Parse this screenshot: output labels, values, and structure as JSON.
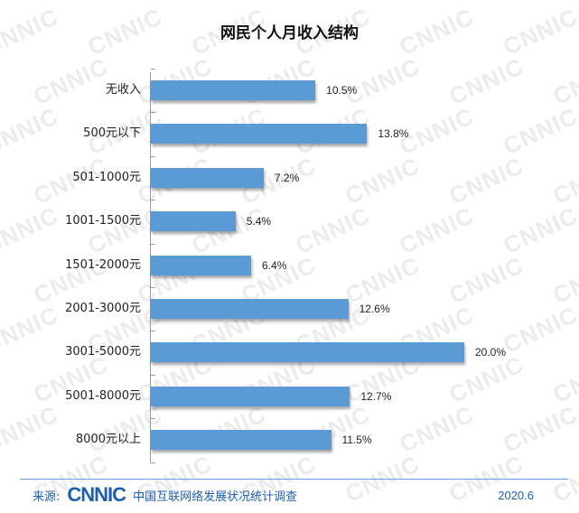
{
  "chart_data": {
    "type": "bar",
    "orientation": "horizontal",
    "title": "网民个人月收入结构",
    "categories": [
      "无收入",
      "500元以下",
      "501-1000元",
      "1001-1500元",
      "1501-2000元",
      "2001-3000元",
      "3001-5000元",
      "5001-8000元",
      "8000元以上"
    ],
    "values": [
      10.5,
      13.8,
      7.2,
      5.4,
      6.4,
      12.6,
      20.0,
      12.7,
      11.5
    ],
    "value_labels": [
      "10.5%",
      "13.8%",
      "7.2%",
      "5.4%",
      "6.4%",
      "12.6%",
      "20.0%",
      "12.7%",
      "11.5%"
    ],
    "xlabel": "",
    "ylabel": "",
    "unit": "%",
    "grid": false,
    "legend": null,
    "bar_color": "#5b9bd5"
  },
  "footer": {
    "source_label": "来源:",
    "logo_text": "CNNIC",
    "survey_name": "中国互联网络发展状况统计调查",
    "date": "2020.6"
  },
  "watermark": "CNNIC",
  "colors": {
    "bar": "#5b9bd5",
    "footer_text": "#1f5fb0",
    "footer_line": "#6aa0d8"
  }
}
